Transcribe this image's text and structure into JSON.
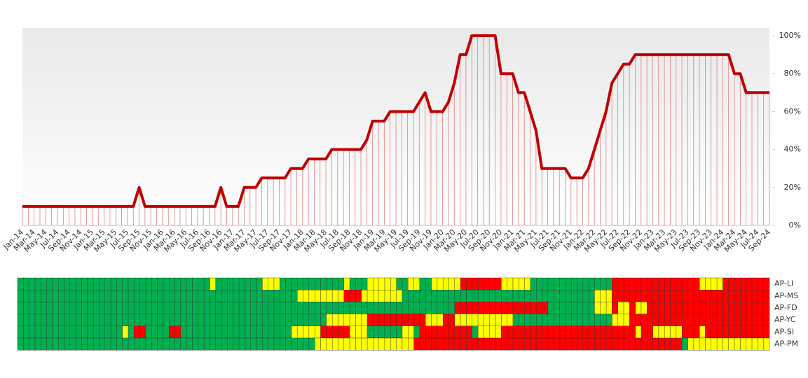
{
  "chart_data": [
    {
      "type": "line",
      "color": "#c00000",
      "drop_lines": true,
      "categories": [
        "Jan-14",
        null,
        "Mar-14",
        null,
        "May-14",
        null,
        "Jul-14",
        null,
        "Sep-14",
        null,
        "Nov-14",
        null,
        "Jan-15",
        null,
        "Mar-15",
        null,
        "May-15",
        null,
        "Jul-15",
        null,
        "Sep-15",
        null,
        "Nov-15",
        null,
        "Jan-16",
        null,
        "Mar-16",
        null,
        "May-16",
        null,
        "Jul-16",
        null,
        "Sep-16",
        null,
        "Nov-16",
        null,
        "Jan-17",
        null,
        "Mar-17",
        null,
        "May-17",
        null,
        "Jul-17",
        null,
        "Sep-17",
        null,
        "Nov-17",
        null,
        "Jan-18",
        null,
        "Mar-18",
        null,
        "May-18",
        null,
        "Jul-18",
        null,
        "Sep-18",
        null,
        "Nov-18",
        null,
        "Jan-19",
        null,
        "Mar-19",
        null,
        "May-19",
        null,
        "Jul-19",
        null,
        "Sep-19",
        null,
        "Nov-19",
        null,
        "Jan-20",
        null,
        "Mar-20",
        null,
        "May-20",
        null,
        "Jul-20",
        null,
        "Sep-20",
        null,
        "Nov-20",
        null,
        "Jan-21",
        null,
        "Mar-21",
        null,
        "May-21",
        null,
        "Jul-21",
        null,
        "Sep-21",
        null,
        "Nov-21",
        null,
        "Jan-22",
        null,
        "Mar-22",
        null,
        "May-22",
        null,
        "Jul-22",
        null,
        "Sep-22",
        null,
        "Nov-22",
        null,
        "Jan-23",
        null,
        "Mar-23",
        null,
        "May-23",
        null,
        "Jul-23",
        null,
        "Sep-23",
        null,
        "Nov-23",
        null,
        "Jan-24",
        null,
        "Mar-24",
        null,
        "May-24",
        null,
        "Jul-24",
        null,
        "Sep-24"
      ],
      "values": [
        10,
        10,
        10,
        10,
        10,
        10,
        10,
        10,
        10,
        10,
        10,
        10,
        10,
        10,
        10,
        10,
        10,
        10,
        10,
        10,
        20,
        10,
        10,
        10,
        10,
        10,
        10,
        10,
        10,
        10,
        10,
        10,
        10,
        10,
        20,
        10,
        10,
        10,
        20,
        20,
        20,
        25,
        25,
        25,
        25,
        25,
        30,
        30,
        30,
        35,
        35,
        35,
        35,
        40,
        40,
        40,
        40,
        40,
        40,
        45,
        55,
        55,
        55,
        60,
        60,
        60,
        60,
        60,
        65,
        70,
        60,
        60,
        60,
        65,
        75,
        90,
        90,
        100,
        100,
        100,
        100,
        100,
        80,
        80,
        80,
        70,
        70,
        60,
        50,
        30,
        30,
        30,
        30,
        30,
        25,
        25,
        25,
        30,
        40,
        50,
        60,
        75,
        80,
        85,
        85,
        90,
        90,
        90,
        90,
        90,
        90,
        90,
        90,
        90,
        90,
        90,
        90,
        90,
        90,
        90,
        90,
        90,
        80,
        80,
        70,
        70,
        70,
        70,
        70
      ],
      "ylim": [
        0,
        100
      ],
      "yticks": [
        {
          "value": 0,
          "label": "0%"
        },
        {
          "value": 20,
          "label": "20%"
        },
        {
          "value": 40,
          "label": "40%"
        },
        {
          "value": 60,
          "label": "60%"
        },
        {
          "value": 80,
          "label": "80%"
        },
        {
          "value": 100,
          "label": "100%"
        }
      ]
    },
    {
      "type": "heatmap",
      "rows": [
        "AP-LI",
        "AP-MS",
        "AP-FD",
        "AP-YC",
        "AP-SI",
        "AP-PM"
      ],
      "colors": [
        "#00b050",
        "#ffff00",
        "#ff0000"
      ],
      "values": [
        [
          0,
          0,
          0,
          0,
          0,
          0,
          0,
          0,
          0,
          0,
          0,
          0,
          0,
          0,
          0,
          0,
          0,
          0,
          0,
          0,
          0,
          0,
          0,
          0,
          0,
          0,
          0,
          0,
          0,
          0,
          0,
          0,
          0,
          1,
          0,
          0,
          0,
          0,
          0,
          0,
          0,
          0,
          1,
          1,
          1,
          0,
          0,
          0,
          0,
          0,
          0,
          0,
          0,
          0,
          0,
          0,
          1,
          0,
          0,
          0,
          1,
          1,
          1,
          1,
          1,
          0,
          0,
          1,
          1,
          0,
          0,
          1,
          1,
          1,
          1,
          1,
          2,
          2,
          2,
          2,
          2,
          2,
          2,
          1,
          1,
          1,
          1,
          1,
          0,
          0,
          0,
          0,
          0,
          0,
          0,
          0,
          0,
          0,
          0,
          0,
          0,
          0,
          2,
          2,
          2,
          2,
          2,
          2,
          2,
          2,
          2,
          2,
          2,
          2,
          2,
          2,
          2,
          1,
          1,
          1,
          1,
          2,
          2,
          2,
          2,
          2,
          2,
          2,
          2
        ],
        [
          0,
          0,
          0,
          0,
          0,
          0,
          0,
          0,
          0,
          0,
          0,
          0,
          0,
          0,
          0,
          0,
          0,
          0,
          0,
          0,
          0,
          0,
          0,
          0,
          0,
          0,
          0,
          0,
          0,
          0,
          0,
          0,
          0,
          0,
          0,
          0,
          0,
          0,
          0,
          0,
          0,
          0,
          0,
          0,
          0,
          0,
          0,
          0,
          1,
          1,
          1,
          1,
          1,
          1,
          1,
          1,
          2,
          2,
          2,
          1,
          1,
          1,
          1,
          1,
          1,
          1,
          0,
          0,
          0,
          0,
          0,
          0,
          0,
          0,
          0,
          0,
          0,
          0,
          0,
          0,
          0,
          0,
          0,
          0,
          0,
          0,
          0,
          0,
          0,
          0,
          0,
          0,
          0,
          0,
          0,
          0,
          0,
          0,
          0,
          1,
          1,
          1,
          2,
          2,
          2,
          2,
          2,
          2,
          2,
          2,
          2,
          2,
          2,
          2,
          2,
          2,
          2,
          2,
          2,
          2,
          2,
          2,
          2,
          2,
          2,
          2,
          2,
          2,
          2
        ],
        [
          0,
          0,
          0,
          0,
          0,
          0,
          0,
          0,
          0,
          0,
          0,
          0,
          0,
          0,
          0,
          0,
          0,
          0,
          0,
          0,
          0,
          0,
          0,
          0,
          0,
          0,
          0,
          0,
          0,
          0,
          0,
          0,
          0,
          0,
          0,
          0,
          0,
          0,
          0,
          0,
          0,
          0,
          0,
          0,
          0,
          0,
          0,
          0,
          0,
          0,
          0,
          0,
          0,
          0,
          0,
          0,
          0,
          0,
          0,
          0,
          0,
          0,
          0,
          0,
          0,
          0,
          0,
          0,
          0,
          0,
          0,
          0,
          0,
          0,
          0,
          2,
          2,
          2,
          2,
          2,
          2,
          2,
          2,
          2,
          2,
          2,
          2,
          2,
          2,
          2,
          2,
          0,
          0,
          0,
          0,
          0,
          0,
          0,
          0,
          1,
          1,
          1,
          2,
          1,
          1,
          2,
          1,
          1,
          2,
          2,
          2,
          2,
          2,
          2,
          2,
          2,
          2,
          2,
          2,
          2,
          2,
          2,
          2,
          2,
          2,
          2,
          2,
          2,
          2
        ],
        [
          0,
          0,
          0,
          0,
          0,
          0,
          0,
          0,
          0,
          0,
          0,
          0,
          0,
          0,
          0,
          0,
          0,
          0,
          0,
          0,
          0,
          0,
          0,
          0,
          0,
          0,
          0,
          0,
          0,
          0,
          0,
          0,
          0,
          0,
          0,
          0,
          0,
          0,
          0,
          0,
          0,
          0,
          0,
          0,
          0,
          0,
          0,
          0,
          0,
          0,
          0,
          0,
          0,
          1,
          1,
          1,
          1,
          1,
          1,
          1,
          2,
          2,
          2,
          2,
          2,
          2,
          2,
          2,
          2,
          2,
          1,
          1,
          1,
          2,
          2,
          1,
          1,
          1,
          1,
          1,
          1,
          1,
          1,
          1,
          1,
          0,
          0,
          0,
          0,
          0,
          0,
          0,
          0,
          0,
          0,
          0,
          0,
          0,
          0,
          0,
          0,
          0,
          1,
          1,
          1,
          2,
          2,
          2,
          2,
          2,
          2,
          2,
          2,
          2,
          2,
          2,
          2,
          2,
          2,
          2,
          2,
          2,
          2,
          2,
          2,
          2,
          2,
          2,
          2
        ],
        [
          0,
          0,
          0,
          0,
          0,
          0,
          0,
          0,
          0,
          0,
          0,
          0,
          0,
          0,
          0,
          0,
          0,
          0,
          1,
          0,
          2,
          2,
          0,
          0,
          0,
          0,
          2,
          2,
          0,
          0,
          0,
          0,
          0,
          0,
          0,
          0,
          0,
          0,
          0,
          0,
          0,
          0,
          0,
          0,
          0,
          0,
          0,
          1,
          1,
          1,
          1,
          1,
          2,
          2,
          2,
          2,
          2,
          1,
          1,
          1,
          0,
          0,
          0,
          0,
          0,
          0,
          1,
          1,
          0,
          2,
          2,
          2,
          2,
          2,
          2,
          2,
          2,
          2,
          0,
          1,
          1,
          1,
          1,
          2,
          2,
          2,
          2,
          2,
          2,
          2,
          2,
          2,
          2,
          2,
          2,
          2,
          2,
          2,
          2,
          2,
          2,
          2,
          2,
          2,
          2,
          2,
          1,
          2,
          2,
          1,
          1,
          1,
          1,
          1,
          2,
          2,
          2,
          1,
          2,
          2,
          2,
          2,
          2,
          2,
          2,
          2,
          2,
          2,
          2
        ],
        [
          0,
          0,
          0,
          0,
          0,
          0,
          0,
          0,
          0,
          0,
          0,
          0,
          0,
          0,
          0,
          0,
          0,
          0,
          0,
          0,
          0,
          0,
          0,
          0,
          0,
          0,
          0,
          0,
          0,
          0,
          0,
          0,
          0,
          0,
          0,
          0,
          0,
          0,
          0,
          0,
          0,
          0,
          0,
          0,
          0,
          0,
          0,
          0,
          0,
          0,
          0,
          1,
          1,
          1,
          1,
          1,
          1,
          1,
          1,
          1,
          1,
          1,
          1,
          1,
          1,
          1,
          1,
          1,
          2,
          2,
          2,
          2,
          2,
          2,
          2,
          2,
          2,
          2,
          2,
          2,
          2,
          2,
          2,
          2,
          2,
          2,
          2,
          2,
          2,
          2,
          2,
          2,
          2,
          2,
          2,
          2,
          2,
          2,
          2,
          2,
          2,
          2,
          2,
          2,
          2,
          2,
          2,
          2,
          2,
          2,
          2,
          2,
          2,
          2,
          0,
          1,
          1,
          1,
          1,
          1,
          1,
          1,
          1,
          1,
          1,
          1,
          1,
          1,
          1
        ]
      ]
    }
  ]
}
